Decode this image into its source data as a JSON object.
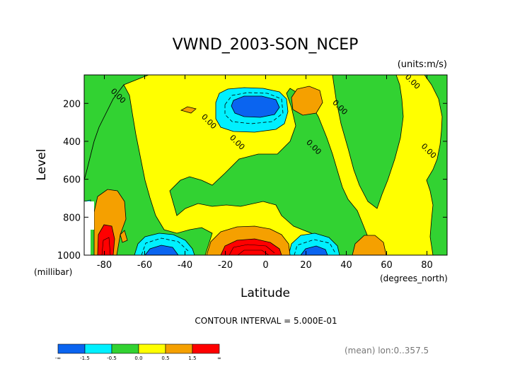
{
  "chart_data": {
    "type": "contour",
    "title": "VWND_2003-SON_NCEP",
    "units_label": "(units:m/s)",
    "xlabel": "Latitude",
    "x_unit_label": "(degrees_north)",
    "ylabel": "Level",
    "y_unit_label": "(millibar)",
    "xlim": [
      -90,
      90
    ],
    "ylim": [
      1000,
      50
    ],
    "x_ticks": [
      -80,
      -60,
      -40,
      -20,
      0,
      20,
      40,
      60,
      80
    ],
    "x_tick_labels": [
      "-80",
      "-60",
      "-40",
      "-20",
      "0",
      "20",
      "40",
      "60",
      "80"
    ],
    "y_ticks": [
      200,
      400,
      600,
      800,
      1000
    ],
    "y_tick_labels": [
      "200",
      "400",
      "600",
      "800",
      "1000"
    ],
    "contour_interval_text": "CONTOUR INTERVAL = 5.000E-01",
    "footnote": "(mean) lon:0..357.5",
    "contour_labels": [
      {
        "text": "0.00",
        "x": -74,
        "y": 170
      },
      {
        "text": "0.00",
        "x": -29,
        "y": 305
      },
      {
        "text": "0.00",
        "x": -15,
        "y": 415
      },
      {
        "text": "0.00",
        "x": 23,
        "y": 440
      },
      {
        "text": "0.00",
        "x": 36,
        "y": 230
      },
      {
        "text": "0.00",
        "x": 72,
        "y": 95
      },
      {
        "text": "0.00",
        "x": 80,
        "y": 460
      }
    ],
    "colorbar": {
      "colors": [
        "#0a64f0",
        "#00f0ff",
        "#32d232",
        "#ffff00",
        "#f5a000",
        "#ff0000"
      ],
      "tick_labels": [
        "-∞",
        "-1.5",
        "-0.5",
        "0.0",
        "0.5",
        "1.5",
        "∞"
      ]
    }
  }
}
